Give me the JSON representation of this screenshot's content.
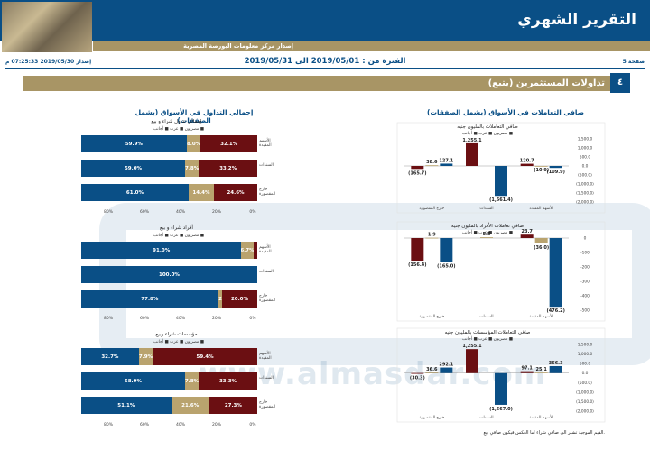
{
  "header": {
    "title": "التقرير الشهري",
    "subtitle": "إصدار مركز معلومات البورصة المصرية"
  },
  "meta": {
    "issue": "إصدار 2019/05/30 07:25:33 م",
    "period": "الفترة من : 2019/05/01 الى 2019/05/31",
    "page": "صفحة 5"
  },
  "section": {
    "number": "٤",
    "title": "تداولات المستثمرين (يتبع)"
  },
  "left_panel": {
    "title": "إجمالي التداول في الأسواق (يشمل الصفقات)",
    "groups": [
      {
        "title": "إجمالي تداول شراء و بيع",
        "rows": [
          {
            "label": "الأسهم المقيدة",
            "blue": 59.9,
            "gold": 8.0,
            "red": 32.1,
            "blue_label": "59.9%",
            "gold_label": "8.0%",
            "red_label": "32.1%"
          },
          {
            "label": "السندات",
            "blue": 59.0,
            "gold": 7.8,
            "red": 33.2,
            "blue_label": "59.0%",
            "gold_label": "7.8%",
            "red_label": "33.2%"
          },
          {
            "label": "خارج المقصورة",
            "blue": 61.0,
            "gold": 14.4,
            "red": 24.6,
            "blue_label": "61.0%",
            "gold_label": "14.4%",
            "red_label": "24.6%"
          }
        ]
      },
      {
        "title": "أفراد شراء و بيع",
        "rows": [
          {
            "label": "الأسهم المقيدة",
            "blue": 91.0,
            "gold": 6.7,
            "red": 2.3,
            "blue_label": "91.0%",
            "gold_label": "6.7%",
            "red_label": ""
          },
          {
            "label": "السندات",
            "blue": 100.0,
            "gold": 0,
            "red": 0,
            "blue_label": "100.0%",
            "gold_label": "",
            "red_label": ""
          },
          {
            "label": "خارج المقصورة",
            "blue": 77.8,
            "gold": 2.2,
            "red": 20.0,
            "blue_label": "77.8%",
            "gold_label": "2.2%",
            "red_label": "20.0%"
          }
        ]
      },
      {
        "title": "مؤسسات شراء وبيع",
        "rows": [
          {
            "label": "الأسهم المقيدة",
            "blue": 32.7,
            "gold": 7.9,
            "red": 59.4,
            "blue_label": "32.7%",
            "gold_label": "7.9%",
            "red_label": "59.4%"
          },
          {
            "label": "السندات",
            "blue": 58.9,
            "gold": 7.8,
            "red": 33.3,
            "blue_label": "58.9%",
            "gold_label": "7.8%",
            "red_label": "33.3%"
          },
          {
            "label": "خارج المقصورة",
            "blue": 51.1,
            "gold": 21.6,
            "red": 27.3,
            "blue_label": "51.1%",
            "gold_label": "21.6%",
            "red_label": "27.3%"
          }
        ]
      }
    ],
    "legend": [
      "مصريون ■",
      "عرب ■",
      "أجانب ■"
    ],
    "ticks": [
      "80%",
      "60%",
      "40%",
      "20%",
      "0%"
    ]
  },
  "right_panel": {
    "title": "صافي التعاملات في الأسواق (يشمل الصفقات)",
    "charts": [
      {
        "title": "صافي التعاملات بالمليون جنيه",
        "ylim": [
          -2000,
          1500
        ],
        "yticks": [
          "1,500.0",
          "1,000.0",
          "500.0",
          "0.0",
          "(500.0)",
          "(1,000.0)",
          "(1,500.0)",
          "(2,000.0)"
        ],
        "categories": [
          "خارج المقصورة",
          "السندات",
          "الأسهم المقيدة"
        ],
        "bars": [
          {
            "cat": 0,
            "color": "#6b0f12",
            "value": -165.7,
            "label": "(165.7)"
          },
          {
            "cat": 0,
            "color": "#b9a36e",
            "value": 38.6,
            "label": "38.6"
          },
          {
            "cat": 0,
            "color": "#0a4f86",
            "value": 127.1,
            "label": "127.1"
          },
          {
            "cat": 1,
            "color": "#6b0f12",
            "value": 1255.1,
            "label": "1,255.1"
          },
          {
            "cat": 1,
            "color": "#0a4f86",
            "value": -1661.4,
            "label": "(1,661.4)"
          },
          {
            "cat": 2,
            "color": "#6b0f12",
            "value": 120.7,
            "label": "120.7"
          },
          {
            "cat": 2,
            "color": "#b9a36e",
            "value": -10.9,
            "label": "(10.9)"
          },
          {
            "cat": 2,
            "color": "#0a4f86",
            "value": -109.9,
            "label": "(109.9)"
          }
        ]
      },
      {
        "title": "صافي تعاملات الأفراد بالمليون جنيه",
        "ylim": [
          -500,
          0
        ],
        "yticks": [
          "0",
          "-100",
          "-200",
          "-300",
          "-400",
          "-500"
        ],
        "categories": [
          "خارج المقصورة",
          "السندات",
          "الأسهم المقيدة"
        ],
        "bars": [
          {
            "cat": 0,
            "color": "#6b0f12",
            "value": -156.4,
            "label": "(156.4)"
          },
          {
            "cat": 0,
            "color": "#b9a36e",
            "value": 1.9,
            "label": "1.9"
          },
          {
            "cat": 0,
            "color": "#0a4f86",
            "value": -165.0,
            "label": "(165.0)"
          },
          {
            "cat": 1,
            "color": "#b9a36e",
            "value": 5.5,
            "label": "5.5"
          },
          {
            "cat": 2,
            "color": "#6b0f12",
            "value": 23.7,
            "label": "23.7"
          },
          {
            "cat": 2,
            "color": "#b9a36e",
            "value": -36.0,
            "label": "(36.0)"
          },
          {
            "cat": 2,
            "color": "#0a4f86",
            "value": -476.2,
            "label": "(476.2)"
          }
        ]
      },
      {
        "title": "صافي التعاملات المؤسسات بالمليون جنيه",
        "ylim": [
          -2000,
          1500
        ],
        "yticks": [
          "1,500.0",
          "1,000.0",
          "500.0",
          "0.0",
          "(500.0)",
          "(1,000.0)",
          "(1,500.0)",
          "(2,000.0)"
        ],
        "categories": [
          "خارج المقصورة",
          "السندات",
          "الأسهم المقيدة"
        ],
        "bars": [
          {
            "cat": 0,
            "color": "#6b0f12",
            "value": -30.3,
            "label": "(30.3)"
          },
          {
            "cat": 0,
            "color": "#b9a36e",
            "value": 36.6,
            "label": "36.6"
          },
          {
            "cat": 0,
            "color": "#0a4f86",
            "value": 292.1,
            "label": "292.1"
          },
          {
            "cat": 1,
            "color": "#6b0f12",
            "value": 1255.1,
            "label": "1,255.1"
          },
          {
            "cat": 1,
            "color": "#0a4f86",
            "value": -1667.0,
            "label": "(1,667.0)"
          },
          {
            "cat": 2,
            "color": "#6b0f12",
            "value": 97.1,
            "label": "97.1"
          },
          {
            "cat": 2,
            "color": "#b9a36e",
            "value": 25.1,
            "label": "25.1"
          },
          {
            "cat": 2,
            "color": "#0a4f86",
            "value": 366.3,
            "label": "366.3"
          }
        ]
      }
    ],
    "legend": [
      "مصريون ■",
      "عرب ■",
      "أجانب ■"
    ]
  },
  "watermark": "www.almasdar.com",
  "footnote": "القيم الموجبة تشير الى صافي شراء اما العكس فيكون صافي بيع.",
  "chart_data": [
    {
      "type": "bar",
      "title": "صافي التعاملات بالمليون جنيه",
      "categories": [
        "خارج المقصورة",
        "السندات",
        "الأسهم المقيدة"
      ],
      "series": [
        {
          "name": "أجانب",
          "values": [
            -165.7,
            1255.1,
            120.7
          ]
        },
        {
          "name": "عرب",
          "values": [
            38.6,
            0,
            -10.9
          ]
        },
        {
          "name": "مصريون",
          "values": [
            127.1,
            -1661.4,
            -109.9
          ]
        }
      ]
    },
    {
      "type": "bar",
      "title": "صافي تعاملات الأفراد بالمليون جنيه",
      "categories": [
        "خارج المقصورة",
        "السندات",
        "الأسهم المقيدة"
      ],
      "series": [
        {
          "name": "أجانب",
          "values": [
            -156.4,
            0,
            23.7
          ]
        },
        {
          "name": "عرب",
          "values": [
            1.9,
            5.5,
            -36.0
          ]
        },
        {
          "name": "مصريون",
          "values": [
            -165.0,
            0,
            -476.2
          ]
        }
      ]
    },
    {
      "type": "bar",
      "title": "صافي التعاملات المؤسسات بالمليون جنيه",
      "categories": [
        "خارج المقصورة",
        "السندات",
        "الأسهم المقيدة"
      ],
      "series": [
        {
          "name": "أجانب",
          "values": [
            -30.3,
            1255.1,
            97.1
          ]
        },
        {
          "name": "عرب",
          "values": [
            36.6,
            0,
            25.1
          ]
        },
        {
          "name": "مصريون",
          "values": [
            292.1,
            -1667.0,
            366.3
          ]
        }
      ]
    }
  ]
}
